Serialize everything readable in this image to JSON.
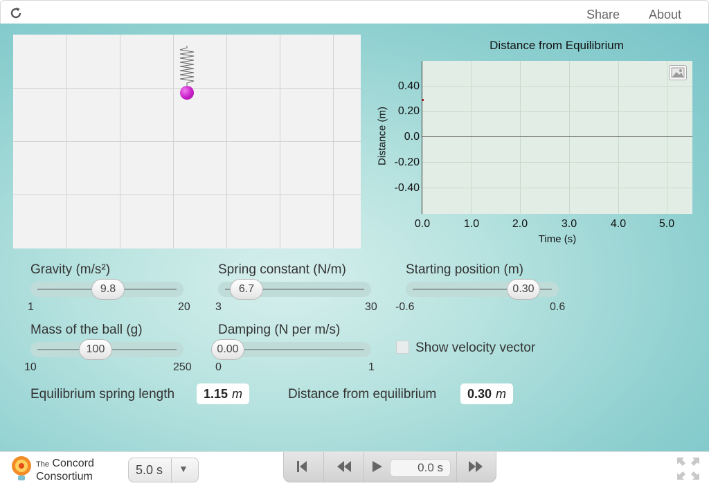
{
  "topbar": {
    "share_label": "Share",
    "about_label": "About"
  },
  "graph": {
    "title": "Distance from Equilibrium",
    "ylabel": "Distance (m)",
    "xlabel": "Time (s)",
    "yticks": [
      "0.40",
      "0.20",
      "0.0",
      "-0.20",
      "-0.40"
    ],
    "xticks": [
      "0.0",
      "1.0",
      "2.0",
      "3.0",
      "4.0",
      "5.0"
    ]
  },
  "chart_data": {
    "type": "line",
    "title": "Distance from Equilibrium",
    "xlabel": "Time (s)",
    "ylabel": "Distance (m)",
    "xlim": [
      0,
      5.5
    ],
    "ylim": [
      -0.6,
      0.6
    ],
    "x": [
      0.0
    ],
    "series": [
      {
        "values": [
          0.3
        ]
      }
    ],
    "grid": true
  },
  "controls": {
    "gravity": {
      "label": "Gravity (m/s²)",
      "value": "9.8",
      "min": "1",
      "max": "20",
      "fraction": 0.463
    },
    "spring_constant": {
      "label": "Spring constant (N/m)",
      "value": "6.7",
      "min": "3",
      "max": "30",
      "fraction": 0.137
    },
    "starting_position": {
      "label": "Starting position (m)",
      "value": "0.30",
      "min": "-0.6",
      "max": "0.6",
      "fraction": 0.75
    },
    "mass": {
      "label": "Mass of the ball (g)",
      "value": "100",
      "min": "10",
      "max": "250",
      "fraction": 0.375
    },
    "damping": {
      "label": "Damping (N per m/s)",
      "value": "0.00",
      "min": "0",
      "max": "1",
      "fraction": 0.0
    },
    "velocity_vector": {
      "label": "Show velocity vector",
      "checked": false
    }
  },
  "readouts": {
    "equilibrium_label": "Equilibrium spring length",
    "equilibrium_value": "1.15",
    "equilibrium_unit": "m",
    "distance_label": "Distance from equilibrium",
    "distance_value": "0.30",
    "distance_unit": "m"
  },
  "logo": {
    "line1_small": "The",
    "line1": "Concord",
    "line2": "Consortium"
  },
  "playback": {
    "duration": "5.0 s",
    "time": "0.0 s"
  },
  "colors": {
    "ball": "#c81ec8",
    "background": "#8fd0d0",
    "plot_bg": "#e2eee5"
  }
}
